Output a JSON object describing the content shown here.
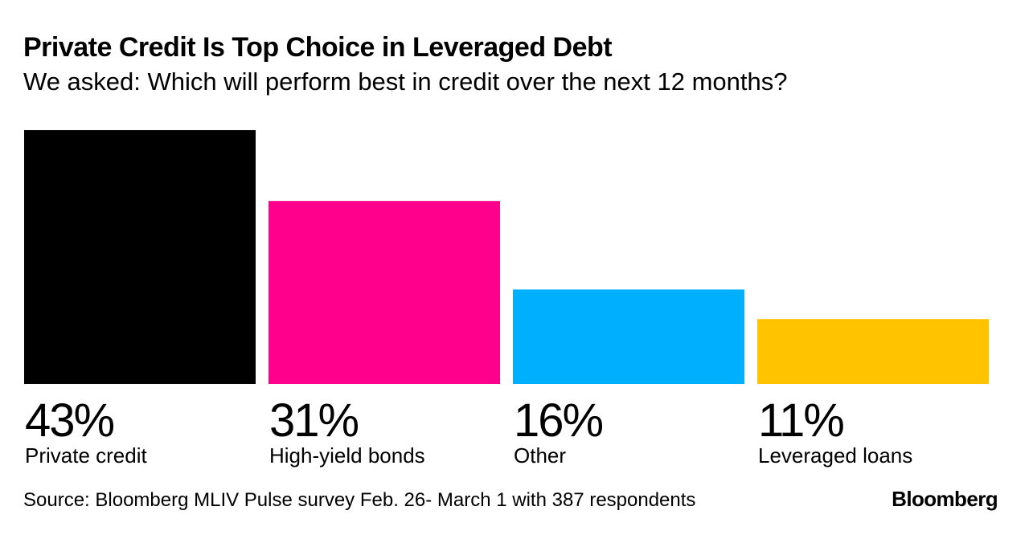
{
  "header": {
    "title": "Private Credit Is Top Choice in Leveraged Debt",
    "subtitle": "We asked: Which will perform best in credit over the next 12 months?"
  },
  "footer": {
    "source": "Source: Bloomberg MLIV Pulse survey Feb. 26- March 1 with 387 respondents",
    "brand": "Bloomberg"
  },
  "chart_data": {
    "type": "bar",
    "title": "Private Credit Is Top Choice in Leveraged Debt",
    "subtitle": "We asked: Which will perform best in credit over the next 12 months?",
    "categories": [
      "Private credit",
      "High-yield bonds",
      "Other",
      "Leveraged loans"
    ],
    "values": [
      43,
      31,
      16,
      11
    ],
    "value_labels": [
      "43%",
      "31%",
      "16%",
      "11%"
    ],
    "colors": [
      "#000000",
      "#ff008c",
      "#00b0ff",
      "#ffc300"
    ],
    "unit": "%",
    "xlabel": "",
    "ylabel": "",
    "ylim": [
      0,
      43
    ],
    "grid": false,
    "legend": "none"
  }
}
